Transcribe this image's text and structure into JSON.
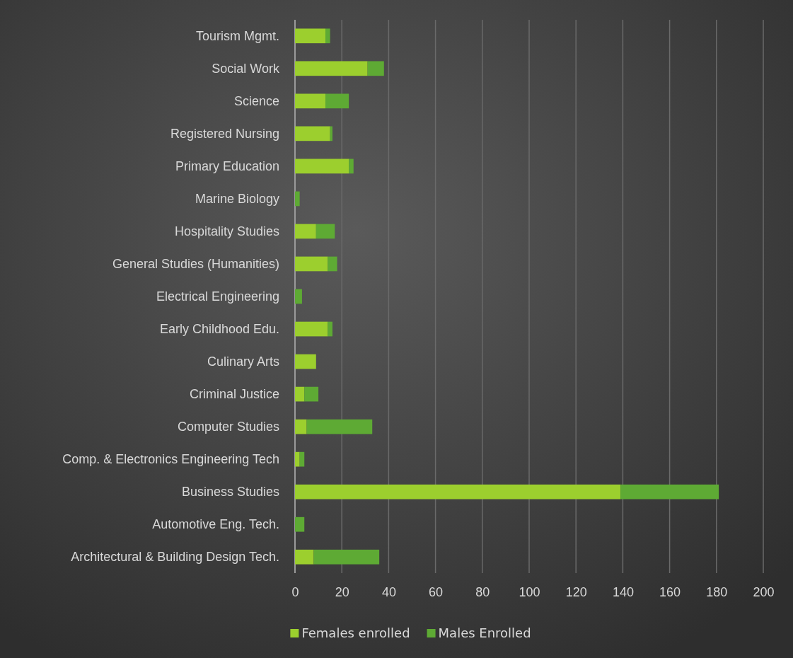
{
  "chart_data": {
    "type": "bar",
    "orientation": "horizontal",
    "stacked": true,
    "categories": [
      "Tourism Mgmt.",
      "Social Work",
      "Science",
      "Registered Nursing ",
      "Primary Education",
      "Marine Biology",
      "Hospitality Studies",
      "General Studies (Humanities)",
      "Electrical Engineering",
      "Early Childhood Edu.",
      "Culinary Arts",
      "Criminal Justice",
      "Computer Studies",
      "Comp. & Electronics Engineering Tech",
      "Business Studies",
      "Automotive Eng. Tech.",
      "Architectural & Building Design Tech."
    ],
    "series": [
      {
        "name": "Females enrolled",
        "color": "#9ccf2e",
        "values": [
          13,
          31,
          13,
          15,
          23,
          0,
          9,
          14,
          0,
          14,
          9,
          4,
          5,
          2,
          139,
          0,
          8
        ]
      },
      {
        "name": "Males Enrolled",
        "color": "#5eaa34",
        "values": [
          2,
          7,
          10,
          1,
          2,
          2,
          8,
          4,
          3,
          2,
          0,
          6,
          28,
          2,
          42,
          4,
          28
        ]
      }
    ],
    "xlim": [
      0,
      200
    ],
    "xticks": [
      0,
      20,
      40,
      60,
      80,
      100,
      120,
      140,
      160,
      180,
      200
    ],
    "grid": "x",
    "legend": "bottom"
  }
}
